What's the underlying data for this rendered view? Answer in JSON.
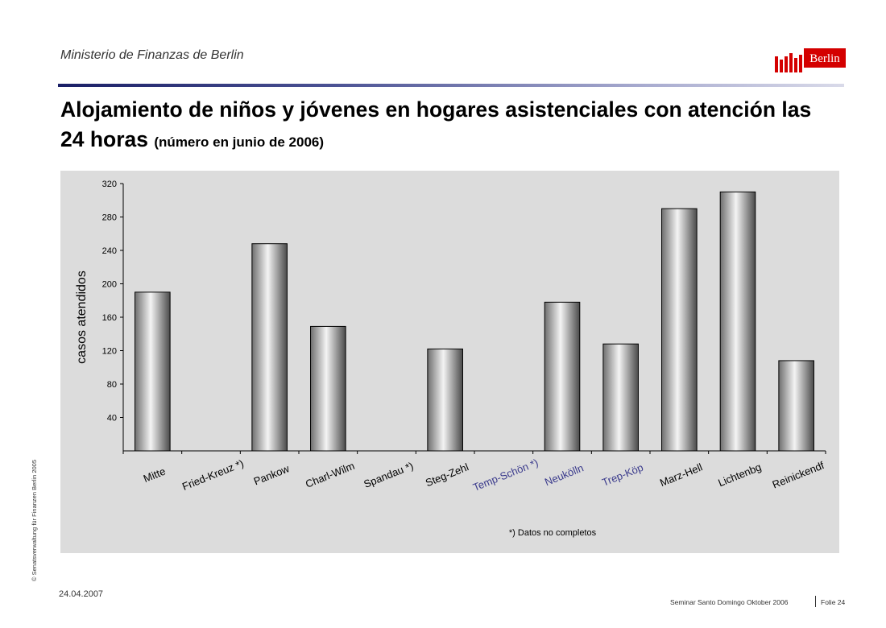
{
  "header": {
    "ministry": "Ministerio de Finanzas de Berlin",
    "logo_text": "Berlin",
    "logo_color": "#d40000"
  },
  "title": {
    "main": "Alojamiento de niños y jóvenes en hogares asistenciales con atención las 24 horas",
    "subtitle": "(número en junio de 2006)"
  },
  "chart_data": {
    "type": "bar",
    "ylabel": "casos atendidos",
    "xlabel": "",
    "ylim": [
      0,
      320
    ],
    "yticks": [
      40,
      80,
      120,
      160,
      200,
      240,
      280,
      320
    ],
    "categories": [
      "Mitte",
      "Fried-Kreuz *)",
      "Pankow",
      "Charl-Wilm",
      "Spandau *)",
      "Steg-Zehl",
      "Temp-Schön *)",
      "Neukölln",
      "Trep-Köp",
      "Marz-Hell",
      "Lichtenbg",
      "Reinickendf"
    ],
    "values": [
      190,
      null,
      248,
      149,
      null,
      122,
      null,
      178,
      128,
      290,
      310,
      108
    ],
    "highlighted_categories": [
      "Temp-Schön *)",
      "Neukölln",
      "Trep-Köp"
    ],
    "highlight_color": "#3a3a8c",
    "footnote": "*)  Datos no completos",
    "grid": false,
    "legend": "none"
  },
  "footer": {
    "side_text": "© Senatsverwaltung für Finanzen Berlin 2005",
    "date": "24.04.2007",
    "seminar": "Seminar Santo Domingo Oktober 2006",
    "folie": "Folie 24"
  }
}
